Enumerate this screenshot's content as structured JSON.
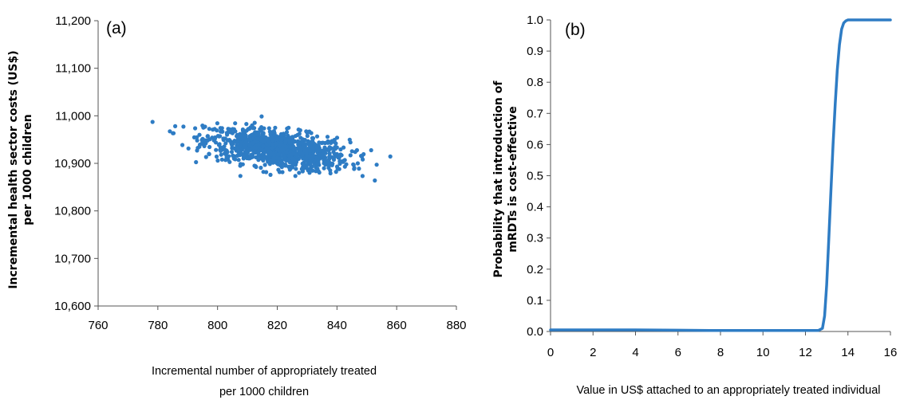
{
  "chart_data": [
    {
      "type": "scatter",
      "panel_label": "(a)",
      "xlabel_lines": [
        "Incremental number of appropriately treated",
        "per 1000 children"
      ],
      "ylabel_lines": [
        "Incremental health sector costs (US$)",
        "per 1000 children"
      ],
      "xlim": [
        760,
        880
      ],
      "ylim": [
        10600,
        11200
      ],
      "x_ticks": [
        760,
        780,
        800,
        820,
        840,
        860,
        880
      ],
      "y_ticks": [
        10600,
        10700,
        10800,
        10900,
        11000,
        11100,
        11200
      ],
      "x_tick_labels": [
        "760",
        "780",
        "800",
        "820",
        "840",
        "860",
        "880"
      ],
      "y_tick_labels": [
        "10,600",
        "10,700",
        "10,800",
        "10,900",
        "11,000",
        "11,100",
        "11,200"
      ],
      "grid": false,
      "color": "#2e7cc4",
      "points_summary": {
        "n_points": 1000,
        "x_mean": 820,
        "x_sd": 12,
        "y_mean": 10930,
        "y_sd": 22,
        "correlation": -0.45,
        "x_range": [
          777,
          866
        ],
        "y_range": [
          10860,
          11005
        ]
      }
    },
    {
      "type": "line",
      "panel_label": "(b)",
      "xlabel": "Value in US$ attached to an appropriately treated individual",
      "ylabel_lines": [
        "Probability that introduction of",
        "mRDTs is cost-effective"
      ],
      "xlim": [
        0,
        16
      ],
      "ylim": [
        0,
        1.0
      ],
      "x_ticks": [
        0,
        2,
        4,
        6,
        8,
        10,
        12,
        14,
        16
      ],
      "y_ticks": [
        0,
        0.1,
        0.2,
        0.3,
        0.4,
        0.5,
        0.6,
        0.7,
        0.8,
        0.9,
        1.0
      ],
      "x_tick_labels": [
        "0",
        "2",
        "4",
        "6",
        "8",
        "10",
        "12",
        "14",
        "16"
      ],
      "y_tick_labels": [
        "0.0",
        "0.1",
        "0.2",
        "0.3",
        "0.4",
        "0.5",
        "0.6",
        "0.7",
        "0.8",
        "0.9",
        "1.0"
      ],
      "grid": false,
      "color": "#2e7cc4",
      "x": [
        0,
        2,
        4,
        6,
        8,
        10,
        12,
        12.6,
        12.8,
        12.9,
        13.0,
        13.1,
        13.2,
        13.3,
        13.4,
        13.5,
        13.6,
        13.7,
        13.8,
        13.9,
        14.0,
        14.2,
        14.5,
        15,
        16
      ],
      "y": [
        0.005,
        0.005,
        0.005,
        0.004,
        0.003,
        0.003,
        0.003,
        0.003,
        0.01,
        0.05,
        0.15,
        0.3,
        0.45,
        0.6,
        0.73,
        0.84,
        0.92,
        0.97,
        0.99,
        0.997,
        1.0,
        1.0,
        1.0,
        1.0,
        1.0
      ]
    }
  ]
}
